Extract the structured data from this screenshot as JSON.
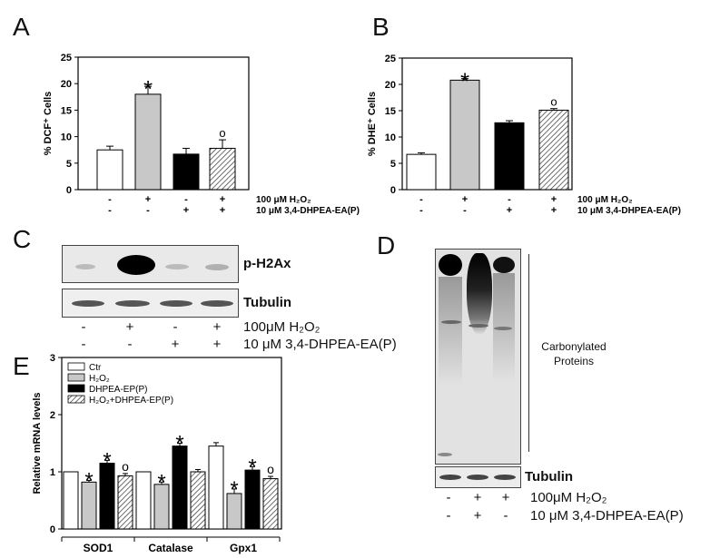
{
  "panels": {
    "a": "A",
    "b": "B",
    "c": "C",
    "d": "D",
    "e": "E"
  },
  "chart_data": [
    {
      "type": "bar",
      "panel": "A",
      "ylabel": "% DCF⁺ Cells",
      "ylim": [
        0,
        25
      ],
      "yticks": [
        0,
        5,
        10,
        15,
        20,
        25
      ],
      "categories": [
        "Ctr",
        "H2O2",
        "3,4-DHPEA-EA(P)",
        "H2O2+3,4-DHPEA-EA(P)"
      ],
      "values": [
        7.5,
        18.0,
        6.7,
        7.8
      ],
      "errors": [
        0.7,
        1.5,
        1.1,
        1.6
      ],
      "annotations": [
        "",
        "*",
        "",
        "o"
      ],
      "fills": [
        "white",
        "#c8c8c8",
        "#000000",
        "hatch"
      ],
      "condition_rows": [
        {
          "label": "100 μM H₂O₂",
          "signs": [
            "-",
            "+",
            "-",
            "+"
          ]
        },
        {
          "label": "10 μM 3,4-DHPEA-EA(P)",
          "signs": [
            "-",
            "-",
            "+",
            "+"
          ]
        }
      ]
    },
    {
      "type": "bar",
      "panel": "B",
      "ylabel": "% DHE⁺ Cells",
      "ylim": [
        0,
        25
      ],
      "yticks": [
        0,
        5,
        10,
        15,
        20,
        25
      ],
      "categories": [
        "Ctr",
        "H2O2",
        "3,4-DHPEA-EA(P)",
        "H2O2+3,4-DHPEA-EA(P)"
      ],
      "values": [
        6.7,
        20.8,
        12.7,
        15.1
      ],
      "errors": [
        0.3,
        0.3,
        0.4,
        0.3
      ],
      "annotations": [
        "",
        "*",
        "",
        "o"
      ],
      "fills": [
        "white",
        "#c8c8c8",
        "#000000",
        "hatch"
      ],
      "condition_rows": [
        {
          "label": "100 μM H₂O₂",
          "signs": [
            "-",
            "+",
            "-",
            "+"
          ]
        },
        {
          "label": "10 μM 3,4-DHPEA-EA(P)",
          "signs": [
            "-",
            "-",
            "+",
            "+"
          ]
        }
      ]
    },
    {
      "type": "bar",
      "panel": "E",
      "ylabel": "Relative mRNA levels",
      "ylim": [
        0,
        3
      ],
      "yticks": [
        0,
        1,
        2,
        3
      ],
      "groups": [
        "SOD1",
        "Catalase",
        "Gpx1"
      ],
      "series": [
        {
          "name": "Ctr",
          "values": [
            1.0,
            1.0,
            1.45
          ],
          "errors": [
            0,
            0,
            0.06
          ],
          "fill": "white"
        },
        {
          "name": "H₂O₂",
          "values": [
            0.82,
            0.78,
            0.62
          ],
          "errors": [
            0.03,
            0.04,
            0.08
          ],
          "fill": "#c8c8c8"
        },
        {
          "name": "DHPEA-EP(P)",
          "values": [
            1.15,
            1.45,
            1.03
          ],
          "errors": [
            0.05,
            0.05,
            0.06
          ],
          "fill": "#000000"
        },
        {
          "name": "H₂O₂+DHPEA-EP(P)",
          "values": [
            0.93,
            1.0,
            0.88
          ],
          "errors": [
            0.04,
            0.04,
            0.04
          ],
          "fill": "hatch"
        }
      ],
      "annotations": [
        [
          "",
          "*",
          "*",
          "o"
        ],
        [
          "",
          "*",
          "*",
          ""
        ],
        [
          "",
          "*",
          "*",
          "o"
        ]
      ]
    }
  ],
  "blot_c": {
    "labels": [
      "p-H2Ax",
      "Tubulin"
    ],
    "condition_rows": [
      {
        "label": "100μM H₂O₂",
        "signs": [
          "-",
          "+",
          "-",
          "+"
        ]
      },
      {
        "label": "10 μM 3,4-DHPEA-EA(P)",
        "signs": [
          "-",
          "-",
          "+",
          "+"
        ]
      }
    ]
  },
  "blot_d": {
    "side_label": "Carbonylated\nProteins",
    "bottom_label": "Tubulin",
    "condition_rows": [
      {
        "label": "100μM H₂O₂",
        "signs": [
          "-",
          "+",
          "+"
        ]
      },
      {
        "label": "10 μM 3,4-DHPEA-EA(P)",
        "signs": [
          "-",
          "+",
          "-"
        ]
      }
    ]
  }
}
